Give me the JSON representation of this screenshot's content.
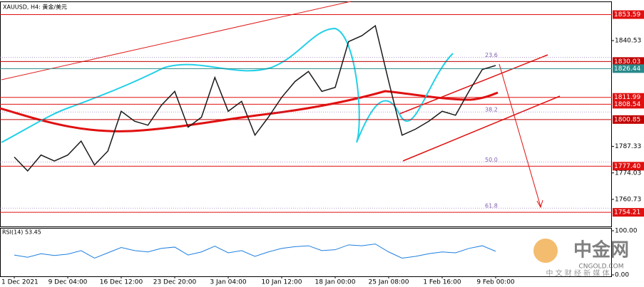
{
  "chart_data": [
    {
      "type": "line",
      "title": "XAUUSD, H4: 黄金/美元",
      "categories": [
        "1 Dec 2021",
        null,
        null,
        null,
        "9 Dec 04:00",
        null,
        null,
        null,
        "16 Dec 12:00",
        null,
        null,
        null,
        "23 Dec 20:00",
        null,
        null,
        null,
        "3 Jan 04:00",
        null,
        null,
        null,
        "10 Jan 12:00",
        null,
        null,
        null,
        "18 Jan 00:00",
        null,
        null,
        null,
        "25 Jan 08:00",
        null,
        null,
        null,
        "1 Feb 16:00",
        null,
        null,
        null,
        "9 Feb 00:00"
      ],
      "values": [
        1782,
        1775,
        1783,
        1780,
        1783,
        1790,
        1778,
        1785,
        1805,
        1800,
        1798,
        1808,
        1815,
        1797,
        1802,
        1822,
        1805,
        1810,
        1793,
        1802,
        1812,
        1820,
        1825,
        1815,
        1817,
        1840,
        1843,
        1848,
        1820,
        1793,
        1796,
        1800,
        1805,
        1803,
        1815,
        1826,
        1828
      ],
      "color": "#1a1a1a",
      "ylim": [
        1747.1,
        1859.5
      ],
      "yticks": [
        1840.53,
        1787.33,
        1774.03,
        1760.73
      ],
      "levels": [
        {
          "value": 1853.59,
          "color": "#e01010"
        },
        {
          "value": 1830.03,
          "color": "#c00000"
        },
        {
          "value": 1826.44,
          "color": "#2a8a8a"
        },
        {
          "value": 1811.99,
          "color": "#e01010"
        },
        {
          "value": 1808.54,
          "color": "#e01010"
        },
        {
          "value": 1800.85,
          "color": "#c00000"
        },
        {
          "value": 1777.4,
          "label": "1777.40",
          "color": "#e01010"
        },
        {
          "value": 1754.21,
          "color": "#e01010"
        }
      ],
      "fibs": [
        {
          "value": 1830.03,
          "label": "23.6"
        },
        {
          "value": 1802.5,
          "label": "38.2"
        },
        {
          "value": 1777.4,
          "label": "50.0"
        },
        {
          "value": 1754.21,
          "label": "61.8"
        }
      ]
    },
    {
      "type": "line",
      "title": "RSI(14) 53.45",
      "values": [
        45,
        40,
        48,
        44,
        47,
        55,
        38,
        50,
        62,
        55,
        52,
        60,
        63,
        45,
        52,
        65,
        50,
        55,
        42,
        52,
        60,
        64,
        66,
        55,
        57,
        68,
        66,
        70,
        52,
        38,
        42,
        48,
        52,
        50,
        60,
        66,
        53.45
      ],
      "color": "#1e7fe0",
      "ylim": [
        0,
        100
      ],
      "yticks": [
        {
          "value": 100,
          "label": "100.00"
        },
        {
          "value": 0,
          "label": "0.00"
        }
      ]
    }
  ],
  "watermark": {
    "logo": "中金网",
    "site": "CNGOLD.COM",
    "slogan": "中 文 财 经 新 媒 体"
  }
}
